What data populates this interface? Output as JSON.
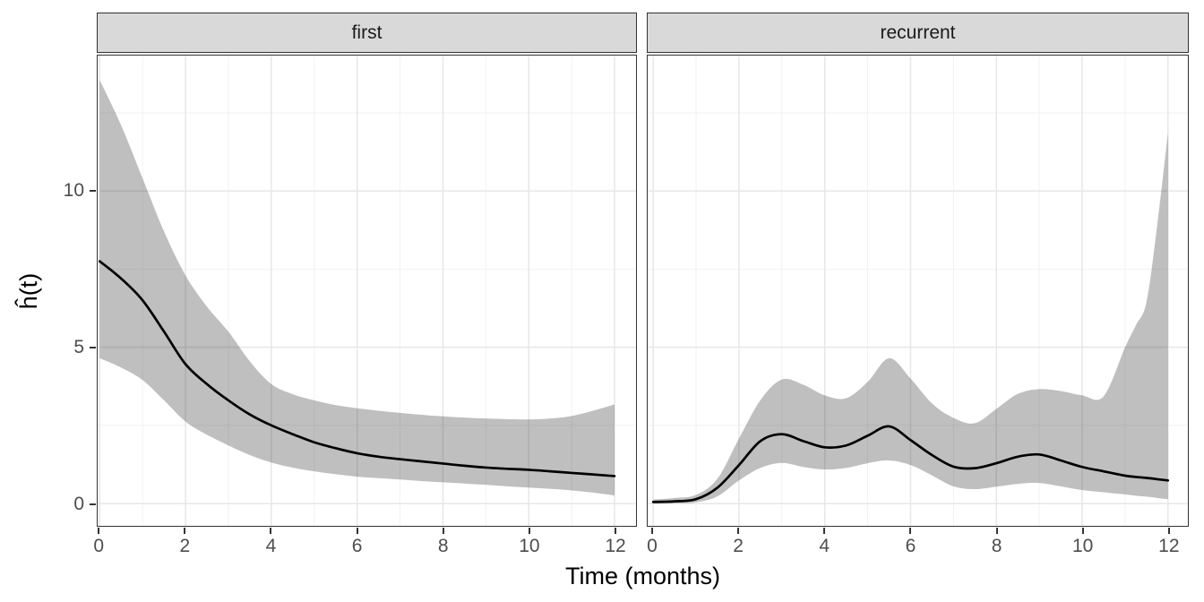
{
  "figure": {
    "facets": [
      "first",
      "recurrent"
    ],
    "x_axis_title": "Time (months)",
    "y_axis_title": "ĥ(t)"
  },
  "axes": {
    "x": {
      "title": "Time (months)",
      "ticks": [
        0,
        2,
        4,
        6,
        8,
        10,
        12
      ],
      "tick_labels": [
        "0",
        "2",
        "4",
        "6",
        "8",
        "10",
        "12"
      ],
      "minor": [
        1,
        3,
        5,
        7,
        9,
        11
      ],
      "range": [
        0,
        12.5
      ]
    },
    "y": {
      "title": "ĥ(t)",
      "ticks": [
        0,
        5,
        10
      ],
      "tick_labels": [
        "0",
        "5",
        "10"
      ],
      "minor": [
        2.5,
        7.5,
        12.5
      ],
      "range": [
        -0.75,
        14.34
      ]
    }
  },
  "colors": {
    "background": "#ffffff",
    "strip_bg": "#d9d9d9",
    "strip_border": "#333333",
    "panel_border": "#333333",
    "grid_major": "#e7e7e7",
    "grid_minor": "#f0f0f0",
    "ribbon_fill": "#000000",
    "ribbon_opacity": 0.25,
    "line": "#000000",
    "tick": "#333333",
    "tick_label": "#4d4d4d",
    "axis_title": "#000000"
  },
  "chart_data": [
    {
      "type": "line",
      "facet": "first",
      "xlabel": "Time (months)",
      "ylabel": "ĥ(t)",
      "xlim": [
        0,
        12.5
      ],
      "ylim": [
        -0.75,
        14.34
      ],
      "grid": "on",
      "ribbon": "95% confidence band",
      "x": [
        0,
        0.5,
        1,
        1.5,
        2,
        2.5,
        3,
        3.5,
        4,
        4.5,
        5,
        5.5,
        6,
        6.5,
        7,
        7.5,
        8,
        8.5,
        9,
        9.5,
        10,
        10.5,
        11,
        11.5,
        12
      ],
      "series": [
        {
          "name": "estimate",
          "values": [
            7.75,
            7.2,
            6.5,
            5.5,
            4.46,
            3.82,
            3.3,
            2.85,
            2.5,
            2.22,
            1.96,
            1.77,
            1.61,
            1.5,
            1.42,
            1.35,
            1.28,
            1.21,
            1.15,
            1.11,
            1.08,
            1.03,
            0.98,
            0.93,
            0.88
          ]
        },
        {
          "name": "ci_upper",
          "values": [
            13.55,
            12.1,
            10.4,
            8.7,
            7.3,
            6.3,
            5.5,
            4.55,
            3.82,
            3.5,
            3.3,
            3.15,
            3.05,
            2.97,
            2.9,
            2.84,
            2.79,
            2.75,
            2.72,
            2.7,
            2.69,
            2.72,
            2.8,
            2.97,
            3.17
          ],
          "linestyle": "ribbon-top"
        },
        {
          "name": "ci_lower",
          "values": [
            4.65,
            4.35,
            3.95,
            3.3,
            2.62,
            2.2,
            1.86,
            1.55,
            1.31,
            1.15,
            1.03,
            0.94,
            0.86,
            0.81,
            0.77,
            0.72,
            0.68,
            0.64,
            0.6,
            0.55,
            0.51,
            0.47,
            0.42,
            0.35,
            0.26
          ],
          "linestyle": "ribbon-bottom"
        }
      ]
    },
    {
      "type": "line",
      "facet": "recurrent",
      "xlabel": "Time (months)",
      "ylabel": "ĥ(t)",
      "xlim": [
        0,
        12.5
      ],
      "ylim": [
        -0.75,
        14.34
      ],
      "grid": "on",
      "ribbon": "95% confidence band",
      "x": [
        0,
        0.5,
        1,
        1.5,
        2,
        2.5,
        3,
        3.5,
        4,
        4.5,
        5,
        5.5,
        6,
        6.5,
        7,
        7.5,
        8,
        8.5,
        9,
        9.5,
        10,
        10.5,
        11,
        11.25,
        11.5,
        11.75,
        12
      ],
      "series": [
        {
          "name": "estimate",
          "values": [
            0.05,
            0.07,
            0.14,
            0.51,
            1.23,
            2.0,
            2.22,
            2.0,
            1.8,
            1.86,
            2.17,
            2.47,
            2.03,
            1.55,
            1.18,
            1.13,
            1.29,
            1.5,
            1.57,
            1.38,
            1.17,
            1.03,
            0.89,
            0.85,
            0.82,
            0.78,
            0.74
          ]
        },
        {
          "name": "ci_upper",
          "values": [
            0.13,
            0.18,
            0.28,
            0.8,
            2.08,
            3.31,
            3.97,
            3.8,
            3.46,
            3.37,
            3.89,
            4.65,
            4.0,
            3.2,
            2.74,
            2.57,
            3.03,
            3.51,
            3.66,
            3.6,
            3.46,
            3.43,
            5.0,
            5.7,
            6.45,
            8.9,
            11.85
          ],
          "linestyle": "ribbon-top"
        },
        {
          "name": "ci_lower",
          "values": [
            0.0,
            0.01,
            0.04,
            0.23,
            0.74,
            1.14,
            1.3,
            1.17,
            1.09,
            1.14,
            1.29,
            1.38,
            1.23,
            0.9,
            0.55,
            0.46,
            0.54,
            0.63,
            0.66,
            0.55,
            0.43,
            0.36,
            0.29,
            0.25,
            0.22,
            0.18,
            0.14
          ],
          "linestyle": "ribbon-bottom"
        }
      ]
    }
  ]
}
